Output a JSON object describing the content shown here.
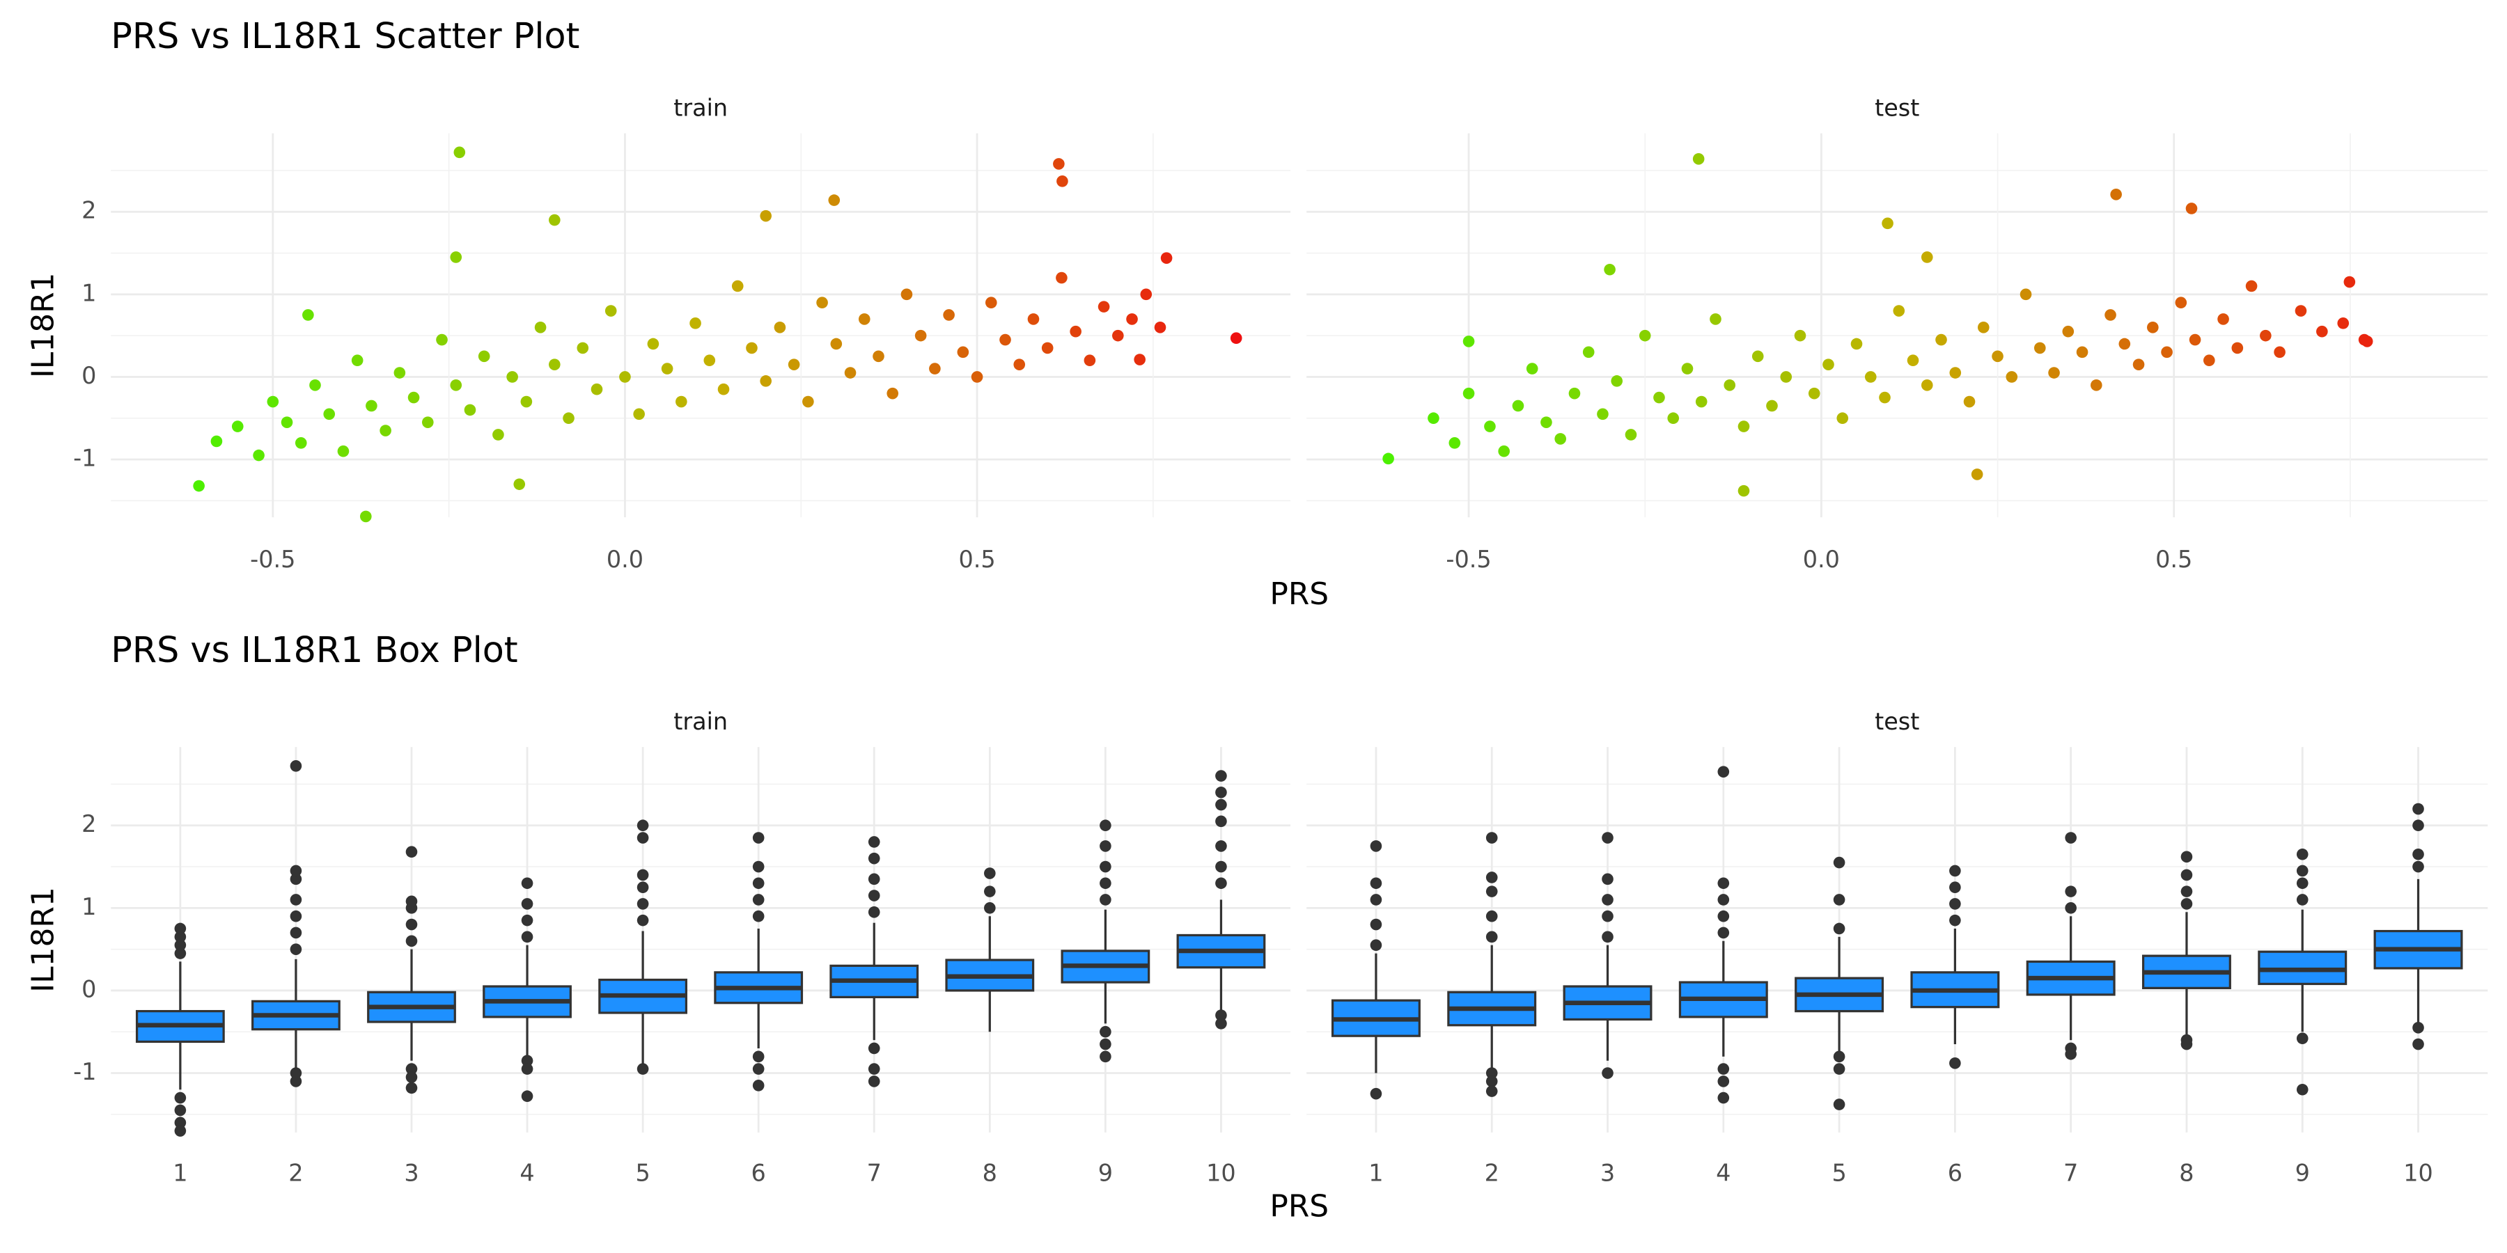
{
  "chart_data": [
    {
      "type": "scatter",
      "title": "PRS vs IL18R1 Scatter Plot",
      "x_label": "PRS",
      "y_label": "IL18R1",
      "color_scale": [
        "#4cf000",
        "#c4b000",
        "#ee1010"
      ],
      "xlim": [
        -0.73,
        0.945
      ],
      "ylim": [
        -1.7,
        2.95
      ],
      "xticks": [
        -0.5,
        {
          "value": 0,
          "label": "0.0"
        },
        0.5
      ],
      "yticks": [
        -1,
        0,
        1,
        2
      ],
      "xminor": [
        -0.25,
        0.25,
        0.75
      ],
      "yminor": [
        -1.5,
        -0.5,
        0.5,
        1.5,
        2.5
      ],
      "grid": true,
      "panels": [
        {
          "title": "train",
          "x": [
            -0.58,
            -0.55,
            -0.52,
            -0.5,
            -0.48,
            -0.46,
            -0.44,
            -0.42,
            -0.4,
            -0.38,
            -0.36,
            -0.34,
            -0.32,
            -0.3,
            -0.28,
            -0.26,
            -0.24,
            -0.22,
            -0.2,
            -0.18,
            -0.16,
            -0.14,
            -0.12,
            -0.1,
            -0.08,
            -0.06,
            -0.04,
            -0.02,
            0.0,
            0.02,
            0.04,
            0.06,
            0.08,
            0.1,
            0.12,
            0.14,
            0.16,
            0.18,
            0.2,
            0.22,
            0.24,
            0.26,
            0.28,
            0.3,
            0.32,
            0.34,
            0.36,
            0.38,
            0.4,
            0.42,
            0.44,
            0.46,
            0.48,
            0.5,
            0.52,
            0.54,
            0.56,
            0.58,
            0.6,
            0.62,
            0.64,
            0.66,
            0.68,
            0.7,
            0.72,
            0.74,
            0.76,
            -0.235,
            0.616,
            0.621,
            0.868,
            -0.605,
            -0.368,
            0.297,
            0.769,
            0.731,
            -0.24,
            -0.1,
            0.2,
            -0.45,
            -0.15
          ],
          "y": [
            -0.78,
            -0.6,
            -0.95,
            -0.3,
            -0.55,
            -0.8,
            -0.1,
            -0.45,
            -0.9,
            0.2,
            -0.35,
            -0.65,
            0.05,
            -0.25,
            -0.55,
            0.45,
            -0.1,
            -0.4,
            0.25,
            -0.7,
            0.0,
            -0.3,
            0.6,
            0.15,
            -0.5,
            0.35,
            -0.15,
            0.8,
            0.0,
            -0.45,
            0.4,
            0.1,
            -0.3,
            0.65,
            0.2,
            -0.15,
            1.1,
            0.35,
            -0.05,
            0.6,
            0.15,
            -0.3,
            0.9,
            0.4,
            0.05,
            0.7,
            0.25,
            -0.2,
            1.0,
            0.5,
            0.1,
            0.75,
            0.3,
            0.0,
            0.9,
            0.45,
            0.15,
            0.7,
            0.35,
            1.2,
            0.55,
            0.2,
            0.85,
            0.5,
            0.7,
            1.0,
            0.6,
            2.72,
            2.58,
            2.37,
            0.47,
            -1.32,
            -1.69,
            2.14,
            1.44,
            0.21,
            1.45,
            1.9,
            1.95,
            0.75,
            -1.3
          ]
        },
        {
          "title": "test",
          "x": [
            -0.55,
            -0.52,
            -0.5,
            -0.47,
            -0.45,
            -0.43,
            -0.41,
            -0.39,
            -0.37,
            -0.35,
            -0.33,
            -0.31,
            -0.29,
            -0.27,
            -0.25,
            -0.23,
            -0.21,
            -0.19,
            -0.17,
            -0.15,
            -0.13,
            -0.11,
            -0.09,
            -0.07,
            -0.05,
            -0.03,
            -0.01,
            0.01,
            0.03,
            0.05,
            0.07,
            0.09,
            0.11,
            0.13,
            0.15,
            0.17,
            0.19,
            0.21,
            0.23,
            0.25,
            0.27,
            0.29,
            0.31,
            0.33,
            0.35,
            0.37,
            0.39,
            0.41,
            0.43,
            0.45,
            0.47,
            0.49,
            0.51,
            0.53,
            0.55,
            0.57,
            0.59,
            0.61,
            0.63,
            0.65,
            0.68,
            0.71,
            0.74,
            0.77,
            -0.174,
            0.418,
            0.525,
            0.094,
            -0.614,
            0.221,
            -0.11,
            0.774,
            0.749,
            -0.5,
            -0.3,
            0.15
          ],
          "y": [
            -0.5,
            -0.8,
            -0.2,
            -0.6,
            -0.9,
            -0.35,
            0.1,
            -0.55,
            -0.75,
            -0.2,
            0.3,
            -0.45,
            -0.05,
            -0.7,
            0.5,
            -0.25,
            -0.5,
            0.1,
            -0.3,
            0.7,
            -0.1,
            -0.6,
            0.25,
            -0.35,
            0.0,
            0.5,
            -0.2,
            0.15,
            -0.5,
            0.4,
            0.0,
            -0.25,
            0.8,
            0.2,
            -0.1,
            0.45,
            0.05,
            -0.3,
            0.6,
            0.25,
            0.0,
            1.0,
            0.35,
            0.05,
            0.55,
            0.3,
            -0.1,
            0.75,
            0.4,
            0.15,
            0.6,
            0.3,
            0.9,
            0.45,
            0.2,
            0.7,
            0.35,
            1.1,
            0.5,
            0.3,
            0.8,
            0.55,
            0.65,
            0.45,
            2.64,
            2.21,
            2.04,
            1.86,
            -0.99,
            -1.18,
            -1.38,
            0.43,
            1.15,
            0.43,
            1.3,
            1.45
          ]
        }
      ]
    },
    {
      "type": "box",
      "title": "PRS vs IL18R1 Box Plot",
      "x_label": "PRS",
      "y_label": "IL18R1",
      "color": "#1e90ff",
      "categories": [
        1,
        2,
        3,
        4,
        5,
        6,
        7,
        8,
        9,
        10
      ],
      "ylim": [
        -1.72,
        2.95
      ],
      "yticks": [
        -1,
        0,
        1,
        2
      ],
      "yminor": [
        -1.5,
        -0.5,
        0.5,
        1.5,
        2.5
      ],
      "grid": true,
      "panels": [
        {
          "title": "train",
          "boxes": [
            {
              "whisker_low": -1.2,
              "q1": -0.62,
              "median": -0.42,
              "q3": -0.25,
              "whisker_high": 0.35,
              "outliers": [
                0.45,
                0.55,
                0.65,
                0.75,
                -1.3,
                -1.45,
                -1.6,
                -1.7
              ]
            },
            {
              "whisker_low": -0.95,
              "q1": -0.47,
              "median": -0.3,
              "q3": -0.13,
              "whisker_high": 0.38,
              "outliers": [
                0.5,
                0.7,
                0.9,
                1.1,
                1.35,
                1.45,
                2.72,
                -1.0,
                -1.1
              ]
            },
            {
              "whisker_low": -0.85,
              "q1": -0.38,
              "median": -0.2,
              "q3": -0.02,
              "whisker_high": 0.5,
              "outliers": [
                0.6,
                0.8,
                1.0,
                1.08,
                1.68,
                -0.95,
                -1.05,
                -1.18
              ]
            },
            {
              "whisker_low": -0.8,
              "q1": -0.32,
              "median": -0.13,
              "q3": 0.05,
              "whisker_high": 0.55,
              "outliers": [
                0.65,
                0.85,
                1.05,
                1.3,
                -0.85,
                -0.95,
                -1.28
              ]
            },
            {
              "whisker_low": -0.9,
              "q1": -0.27,
              "median": -0.06,
              "q3": 0.13,
              "whisker_high": 0.72,
              "outliers": [
                0.85,
                1.05,
                1.25,
                1.4,
                1.85,
                2.0,
                -0.95
              ]
            },
            {
              "whisker_low": -0.7,
              "q1": -0.15,
              "median": 0.03,
              "q3": 0.22,
              "whisker_high": 0.75,
              "outliers": [
                0.9,
                1.1,
                1.3,
                1.5,
                1.85,
                -0.8,
                -0.95,
                -1.15
              ]
            },
            {
              "whisker_low": -0.6,
              "q1": -0.08,
              "median": 0.12,
              "q3": 0.3,
              "whisker_high": 0.82,
              "outliers": [
                0.95,
                1.15,
                1.35,
                1.6,
                1.8,
                -0.7,
                -0.95,
                -1.1
              ]
            },
            {
              "whisker_low": -0.5,
              "q1": 0.0,
              "median": 0.17,
              "q3": 0.37,
              "whisker_high": 0.9,
              "outliers": [
                1.0,
                1.2,
                1.42
              ]
            },
            {
              "whisker_low": -0.4,
              "q1": 0.1,
              "median": 0.3,
              "q3": 0.48,
              "whisker_high": 0.98,
              "outliers": [
                1.1,
                1.3,
                1.5,
                1.75,
                2.0,
                -0.5,
                -0.65,
                -0.8
              ]
            },
            {
              "whisker_low": -0.25,
              "q1": 0.28,
              "median": 0.48,
              "q3": 0.67,
              "whisker_high": 1.1,
              "outliers": [
                1.3,
                1.5,
                1.75,
                2.05,
                2.25,
                2.4,
                2.6,
                -0.3,
                -0.4
              ]
            }
          ]
        },
        {
          "title": "test",
          "boxes": [
            {
              "whisker_low": -1.0,
              "q1": -0.55,
              "median": -0.35,
              "q3": -0.12,
              "whisker_high": 0.45,
              "outliers": [
                0.55,
                0.8,
                1.1,
                1.3,
                1.75,
                -1.25
              ]
            },
            {
              "whisker_low": -0.95,
              "q1": -0.42,
              "median": -0.22,
              "q3": -0.02,
              "whisker_high": 0.55,
              "outliers": [
                0.65,
                0.9,
                1.2,
                1.37,
                1.85,
                -1.0,
                -1.1,
                -1.22
              ]
            },
            {
              "whisker_low": -0.85,
              "q1": -0.35,
              "median": -0.15,
              "q3": 0.05,
              "whisker_high": 0.55,
              "outliers": [
                0.65,
                0.9,
                1.1,
                1.35,
                1.85,
                -1.0
              ]
            },
            {
              "whisker_low": -0.8,
              "q1": -0.32,
              "median": -0.1,
              "q3": 0.1,
              "whisker_high": 0.6,
              "outliers": [
                0.7,
                0.9,
                1.1,
                1.3,
                2.65,
                -0.95,
                -1.1,
                -1.3
              ]
            },
            {
              "whisker_low": -0.75,
              "q1": -0.25,
              "median": -0.05,
              "q3": 0.15,
              "whisker_high": 0.65,
              "outliers": [
                0.75,
                1.1,
                1.55,
                -0.8,
                -0.95,
                -1.38
              ]
            },
            {
              "whisker_low": -0.65,
              "q1": -0.2,
              "median": 0.0,
              "q3": 0.22,
              "whisker_high": 0.75,
              "outliers": [
                0.85,
                1.05,
                1.25,
                1.45,
                -0.88
              ]
            },
            {
              "whisker_low": -0.6,
              "q1": -0.05,
              "median": 0.15,
              "q3": 0.35,
              "whisker_high": 0.9,
              "outliers": [
                1.0,
                1.2,
                1.85,
                -0.7,
                -0.77
              ]
            },
            {
              "whisker_low": -0.55,
              "q1": 0.03,
              "median": 0.22,
              "q3": 0.42,
              "whisker_high": 0.95,
              "outliers": [
                1.05,
                1.2,
                1.4,
                1.62,
                -0.6,
                -0.65
              ]
            },
            {
              "whisker_low": -0.5,
              "q1": 0.08,
              "median": 0.25,
              "q3": 0.47,
              "whisker_high": 0.98,
              "outliers": [
                1.1,
                1.3,
                1.45,
                1.65,
                -0.58,
                -1.2
              ]
            },
            {
              "whisker_low": -0.4,
              "q1": 0.27,
              "median": 0.5,
              "q3": 0.72,
              "whisker_high": 1.35,
              "outliers": [
                1.5,
                1.65,
                2.0,
                2.2,
                -0.45,
                -0.65
              ]
            }
          ]
        }
      ]
    }
  ]
}
